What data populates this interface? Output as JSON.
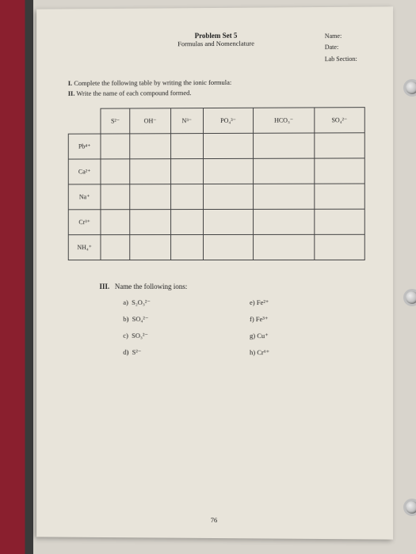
{
  "header": {
    "title": "Problem Set 5",
    "subtitle": "Formulas and Nomenclature"
  },
  "meta": {
    "name_label": "Name:",
    "date_label": "Date:",
    "lab_label": "Lab Section:"
  },
  "instructions": {
    "line1_bold": "I.",
    "line1": " Complete the following table by writing the ionic formula:",
    "line2_bold": "II.",
    "line2": " Write the name of each compound formed."
  },
  "table": {
    "col_headers": [
      "S²⁻",
      "OH⁻",
      "N³⁻",
      "PO₄³⁻",
      "HCO₃⁻",
      "SO₄²⁻"
    ],
    "row_headers": [
      "Pb⁴⁺",
      "Ca²⁺",
      "Na⁺",
      "Cr³⁺",
      "NH₄⁺"
    ]
  },
  "section3": {
    "title_bold": "III.",
    "title": "Name the following ions:",
    "left": [
      {
        "k": "a)",
        "v": "S₂O₃²⁻"
      },
      {
        "k": "b)",
        "v": "SO₄²⁻"
      },
      {
        "k": "c)",
        "v": "SO₃²⁻"
      },
      {
        "k": "d)",
        "v": "S²⁻"
      }
    ],
    "right": [
      {
        "k": "e)",
        "v": "Fe²⁺"
      },
      {
        "k": "f)",
        "v": "Fe³⁺"
      },
      {
        "k": "g)",
        "v": "Cu⁺"
      },
      {
        "k": "h)",
        "v": "Cr⁶⁺"
      }
    ]
  },
  "page_number": "76"
}
